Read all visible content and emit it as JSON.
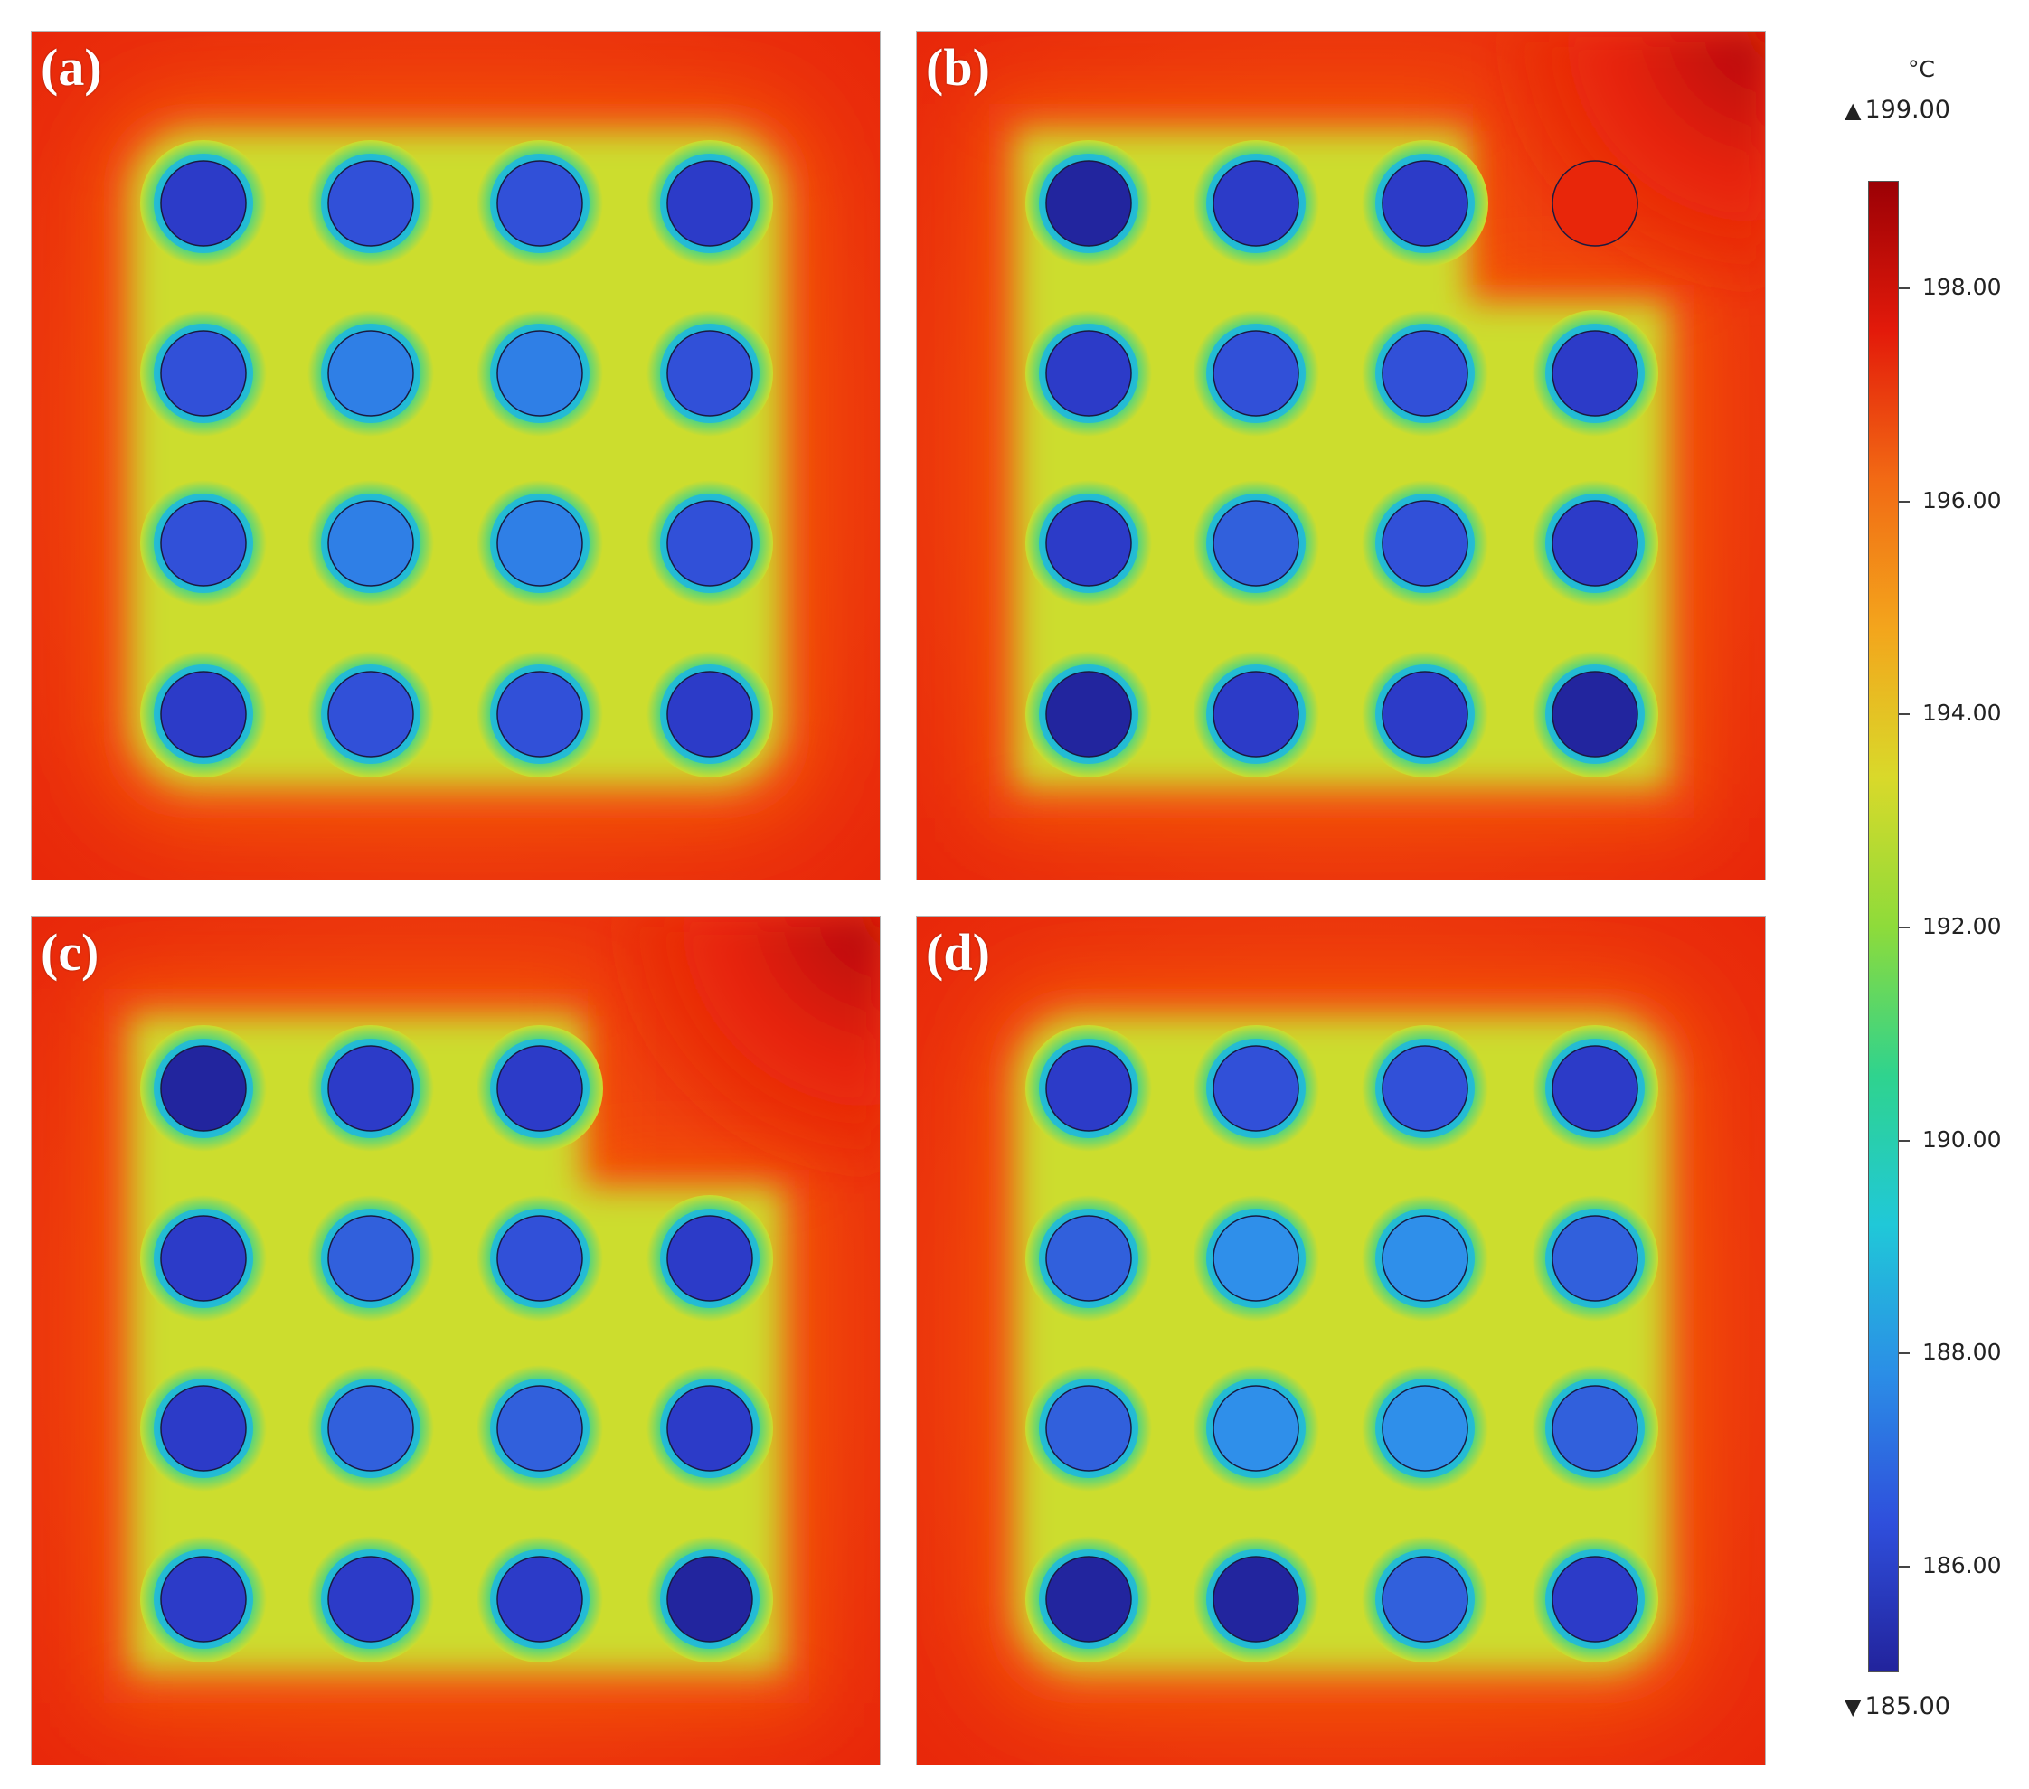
{
  "panels": [
    {
      "label": "(a)",
      "hot_corner": false,
      "rod_colors": [
        [
          "#2c3bc8",
          "#3150d8",
          "#3150d8",
          "#2c3bc8"
        ],
        [
          "#3150d8",
          "#2f7fe6",
          "#2f7fe6",
          "#3150d8"
        ],
        [
          "#3150d8",
          "#2f7fe6",
          "#2f7fe6",
          "#3150d8"
        ],
        [
          "#2c3bc8",
          "#3150d8",
          "#3150d8",
          "#2c3bc8"
        ]
      ]
    },
    {
      "label": "(b)",
      "hot_corner": true,
      "rod_colors": [
        [
          "#22259e",
          "#2c3bc8",
          "#2c3bc8",
          "#e8260a"
        ],
        [
          "#2c3bc8",
          "#3150d8",
          "#3150d8",
          "#2c3bc8"
        ],
        [
          "#2c3bc8",
          "#3160dc",
          "#3150d8",
          "#2c3bc8"
        ],
        [
          "#22259e",
          "#2c3bc8",
          "#2c3bc8",
          "#22259e"
        ]
      ]
    },
    {
      "label": "(c)",
      "hot_corner": true,
      "rod_colors": [
        [
          "#22259e",
          "#2c3bc8",
          "#2c3bc8",
          null
        ],
        [
          "#2c3bc8",
          "#3160dc",
          "#3150d8",
          "#2c3bc8"
        ],
        [
          "#2c3bc8",
          "#3160dc",
          "#3160dc",
          "#2c3bc8"
        ],
        [
          "#2c3bc8",
          "#2c3bc8",
          "#2c3bc8",
          "#22259e"
        ]
      ]
    },
    {
      "label": "(d)",
      "hot_corner": false,
      "rod_colors": [
        [
          "#2c3bc8",
          "#3150d8",
          "#3150d8",
          "#2c3bc8"
        ],
        [
          "#3160dc",
          "#2f8fea",
          "#2f8fea",
          "#3160dc"
        ],
        [
          "#3160dc",
          "#2f8fea",
          "#2f8fea",
          "#3160dc"
        ],
        [
          "#22259e",
          "#22259e",
          "#3160dc",
          "#2c3bc8"
        ]
      ]
    }
  ],
  "legend": {
    "unit": "°C",
    "max_label": "199.00",
    "min_label": "185.00",
    "min": 185,
    "max": 199,
    "ticks": [
      "186.00",
      "188.00",
      "190.00",
      "192.00",
      "194.00",
      "196.00",
      "198.00"
    ]
  },
  "colors": {
    "hot": "#e8260a",
    "hottest": "#b00406",
    "warm": "#f55a10",
    "mid": "#ccdd2e",
    "halo": "#2ad29a",
    "cold": "#22259e"
  }
}
